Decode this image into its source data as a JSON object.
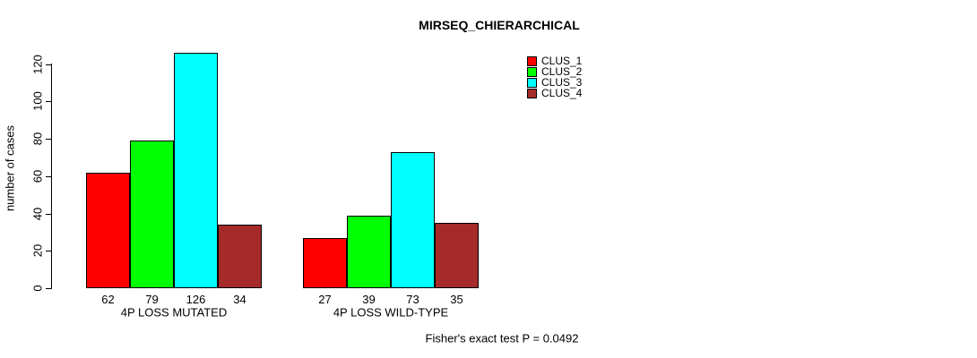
{
  "title": "MIRSEQ_CHIERARCHICAL",
  "chart_data": {
    "type": "bar",
    "title": "MIRSEQ_CHIERARCHICAL",
    "categories": [
      "4P LOSS MUTATED",
      "4P LOSS WILD-TYPE"
    ],
    "series": [
      {
        "name": "CLUS_1",
        "color": "#FF0000",
        "values": [
          62,
          27
        ]
      },
      {
        "name": "CLUS_2",
        "color": "#00FF00",
        "values": [
          79,
          39
        ]
      },
      {
        "name": "CLUS_3",
        "color": "#00FFFF",
        "values": [
          126,
          73
        ]
      },
      {
        "name": "CLUS_4",
        "color": "#A52A2A",
        "values": [
          34,
          35
        ]
      }
    ],
    "xlabel": "",
    "ylabel": "number of cases",
    "yticks": [
      0,
      20,
      40,
      60,
      80,
      100,
      120
    ],
    "ylim": [
      0,
      120
    ],
    "bar_value_labels": [
      [
        62,
        79,
        126,
        34
      ],
      [
        27,
        39,
        73,
        35
      ]
    ],
    "legend_entries": [
      "CLUS_1",
      "CLUS_2",
      "CLUS_3",
      "CLUS_4"
    ],
    "legend_position": "top-right",
    "grid": false
  },
  "footer": {
    "caption": "Fisher's exact test P = 0.0492"
  }
}
